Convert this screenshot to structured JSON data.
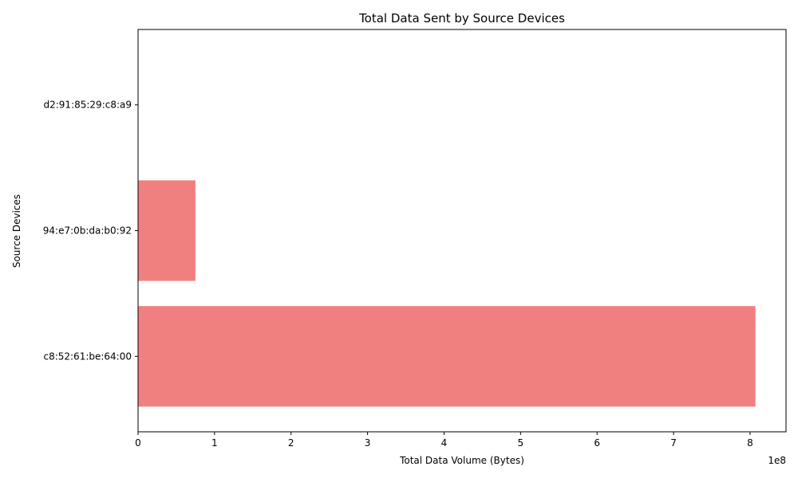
{
  "chart_data": {
    "type": "bar",
    "orientation": "horizontal",
    "title": "Total Data Sent by Source Devices",
    "xlabel": "Total Data Volume (Bytes)",
    "ylabel": "Source Devices",
    "x_scale_label": "1e8",
    "categories": [
      "c8:52:61:be:64:00",
      "94:e7:0b:da:b0:92",
      "d2:91:85:29:c8:a9"
    ],
    "values": [
      807000000,
      75000000,
      0
    ],
    "xlim": [
      0,
      847000000
    ],
    "xticks": [
      0,
      100000000,
      200000000,
      300000000,
      400000000,
      500000000,
      600000000,
      700000000,
      800000000
    ],
    "xtick_labels": [
      "0",
      "1",
      "2",
      "3",
      "4",
      "5",
      "6",
      "7",
      "8"
    ],
    "bar_color": "#f08080",
    "grid": false
  }
}
